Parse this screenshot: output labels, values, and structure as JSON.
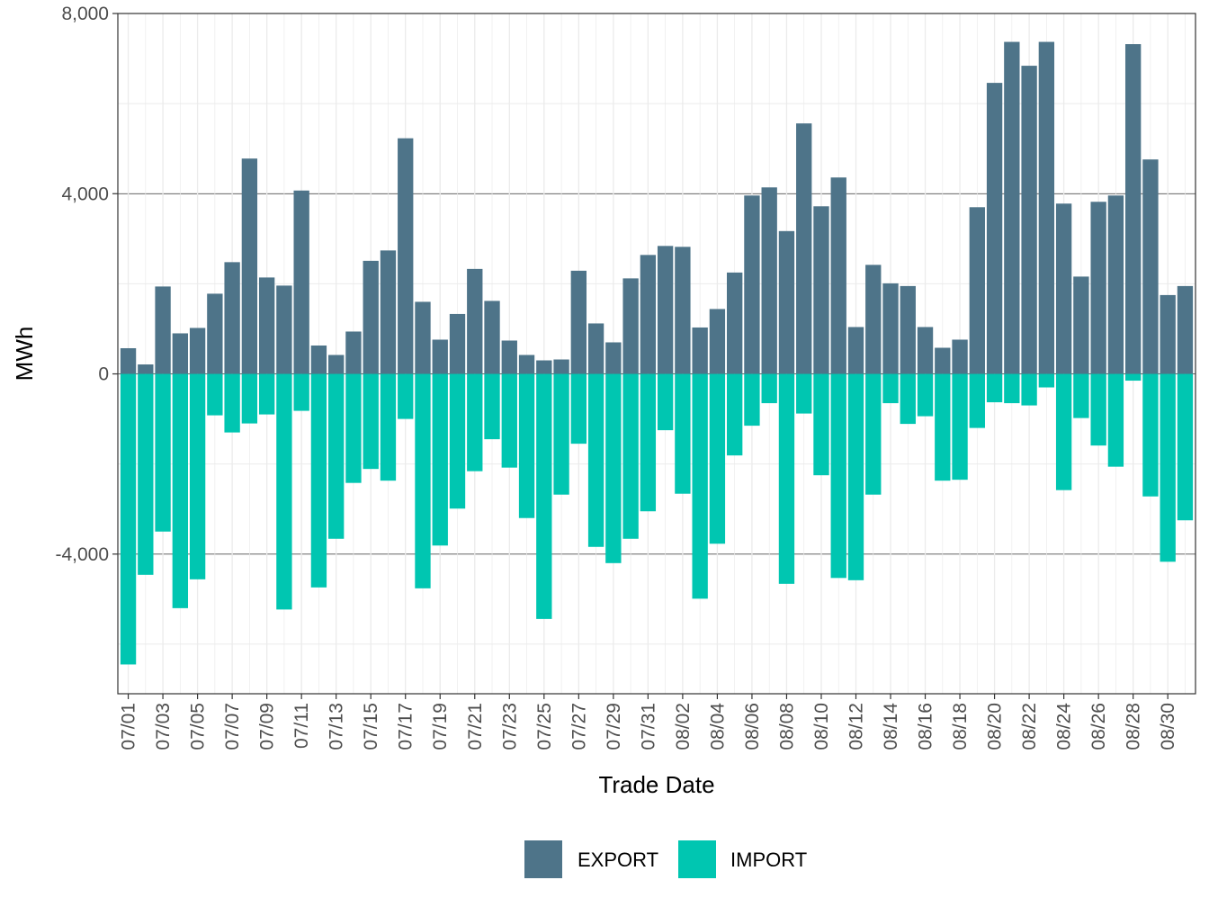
{
  "chart_data": {
    "type": "bar",
    "stacked": "diverging",
    "title": "",
    "xlabel": "Trade Date",
    "ylabel": "MWh",
    "ylim": [
      -7100,
      8000
    ],
    "y_ticks": [
      8000,
      4000,
      0,
      -4000
    ],
    "y_tick_labels": [
      "8,000",
      "4,000",
      "0",
      "-4,000"
    ],
    "x_tick_labels": [
      "07/01",
      "07/03",
      "07/05",
      "07/07",
      "07/09",
      "07/11",
      "07/13",
      "07/15",
      "07/17",
      "07/19",
      "07/21",
      "07/23",
      "07/25",
      "07/27",
      "07/29",
      "07/31",
      "08/02",
      "08/04",
      "08/06",
      "08/08",
      "08/10",
      "08/12",
      "08/14",
      "08/16",
      "08/18",
      "08/20",
      "08/22",
      "08/24",
      "08/26",
      "08/28",
      "08/30"
    ],
    "categories": [
      "07/01",
      "07/02",
      "07/03",
      "07/04",
      "07/05",
      "07/06",
      "07/07",
      "07/08",
      "07/09",
      "07/10",
      "07/11",
      "07/12",
      "07/13",
      "07/14",
      "07/15",
      "07/16",
      "07/17",
      "07/18",
      "07/19",
      "07/20",
      "07/21",
      "07/22",
      "07/23",
      "07/24",
      "07/25",
      "07/26",
      "07/27",
      "07/28",
      "07/29",
      "07/30",
      "07/31",
      "08/01",
      "08/02",
      "08/03",
      "08/04",
      "08/05",
      "08/06",
      "08/07",
      "08/08",
      "08/09",
      "08/10",
      "08/11",
      "08/12",
      "08/13",
      "08/14",
      "08/15",
      "08/16",
      "08/17",
      "08/18",
      "08/19",
      "08/20",
      "08/21",
      "08/22",
      "08/23",
      "08/24",
      "08/25",
      "08/26",
      "08/27",
      "08/28",
      "08/29",
      "08/30",
      "08/31"
    ],
    "series": [
      {
        "name": "EXPORT",
        "color": "#4e7489",
        "values": [
          570,
          210,
          1940,
          900,
          1020,
          1780,
          2480,
          4780,
          2140,
          1960,
          4070,
          630,
          420,
          940,
          2510,
          2740,
          5230,
          1600,
          760,
          1330,
          2330,
          1620,
          740,
          420,
          300,
          320,
          2290,
          1120,
          700,
          2120,
          2640,
          2840,
          2820,
          1030,
          1440,
          2250,
          3960,
          4140,
          3170,
          5560,
          3720,
          4360,
          1040,
          2420,
          2010,
          1950,
          1040,
          580,
          760,
          3700,
          6460,
          7370,
          6840,
          7370,
          3780,
          2160,
          3820,
          3960,
          7320,
          4760,
          1750,
          1950
        ]
      },
      {
        "name": "IMPORT",
        "color": "#00c6b1",
        "values": [
          -6450,
          -4460,
          -3500,
          -5200,
          -4560,
          -920,
          -1300,
          -1100,
          -900,
          -5230,
          -820,
          -4740,
          -3660,
          -2420,
          -2110,
          -2370,
          -1000,
          -4760,
          -3810,
          -2990,
          -2160,
          -1450,
          -2080,
          -3200,
          -5440,
          -2680,
          -1550,
          -3840,
          -4200,
          -3660,
          -3050,
          -1250,
          -2660,
          -4990,
          -3770,
          -1810,
          -1150,
          -650,
          -4660,
          -880,
          -2250,
          -4530,
          -4580,
          -2680,
          -650,
          -1110,
          -940,
          -2370,
          -2350,
          -1200,
          -630,
          -650,
          -700,
          -300,
          -2580,
          -980,
          -1590,
          -2060,
          -150,
          -2720,
          -4170,
          -3250
        ]
      }
    ],
    "legend": {
      "position": "bottom",
      "entries": [
        "EXPORT",
        "IMPORT"
      ]
    },
    "grid": true
  }
}
